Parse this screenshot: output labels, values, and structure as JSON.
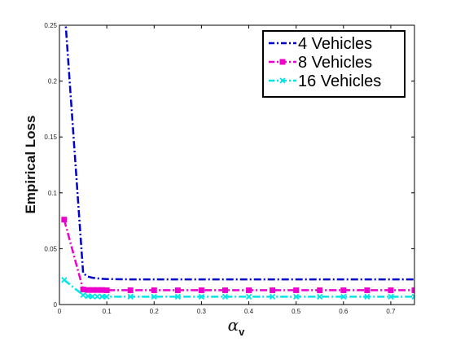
{
  "chart_data": {
    "type": "line",
    "ylabel": "Empirical Loss",
    "xlabel": {
      "main": "α",
      "subscript": "v"
    },
    "xlim": [
      0,
      0.75
    ],
    "ylim": [
      0,
      0.25
    ],
    "x_ticks": [
      "0",
      "0.1",
      "0.2",
      "0.3",
      "0.4",
      "0.5",
      "0.6",
      "0.7"
    ],
    "y_ticks": [
      "0",
      "0.05",
      "0.1",
      "0.15",
      "0.2",
      "0.25"
    ],
    "grid": false,
    "legend_position": "top-right",
    "series": [
      {
        "name": "4 Vehicles",
        "color": "#0000cc",
        "marker": "none",
        "line_style": "dash-dot",
        "x": [
          0.01,
          0.05,
          0.06,
          0.07,
          0.08,
          0.09,
          0.1,
          0.15,
          0.2,
          0.3,
          0.4,
          0.5,
          0.6,
          0.7,
          0.75
        ],
        "values": [
          0.27,
          0.028,
          0.025,
          0.024,
          0.0235,
          0.023,
          0.0228,
          0.0225,
          0.0225,
          0.0225,
          0.0225,
          0.0225,
          0.0225,
          0.0225,
          0.0225
        ]
      },
      {
        "name": "8 Vehicles",
        "color": "#ee00cc",
        "marker": "square",
        "line_style": "dash-dot",
        "x": [
          0.01,
          0.05,
          0.06,
          0.07,
          0.08,
          0.09,
          0.1,
          0.15,
          0.2,
          0.25,
          0.3,
          0.35,
          0.4,
          0.45,
          0.5,
          0.55,
          0.6,
          0.65,
          0.7,
          0.75
        ],
        "values": [
          0.076,
          0.0135,
          0.013,
          0.013,
          0.013,
          0.013,
          0.0128,
          0.0128,
          0.0128,
          0.0128,
          0.0128,
          0.0128,
          0.0128,
          0.0128,
          0.0128,
          0.0128,
          0.0128,
          0.0128,
          0.0128,
          0.0128
        ]
      },
      {
        "name": "16 Vehicles",
        "color": "#00e5e5",
        "marker": "x",
        "line_style": "dash-dot",
        "x": [
          0.01,
          0.05,
          0.06,
          0.07,
          0.08,
          0.09,
          0.1,
          0.15,
          0.2,
          0.25,
          0.3,
          0.35,
          0.4,
          0.45,
          0.5,
          0.55,
          0.6,
          0.65,
          0.7,
          0.75
        ],
        "values": [
          0.022,
          0.0085,
          0.0075,
          0.0072,
          0.0072,
          0.0071,
          0.007,
          0.007,
          0.007,
          0.007,
          0.007,
          0.007,
          0.007,
          0.007,
          0.007,
          0.007,
          0.007,
          0.007,
          0.007,
          0.007
        ]
      }
    ]
  }
}
